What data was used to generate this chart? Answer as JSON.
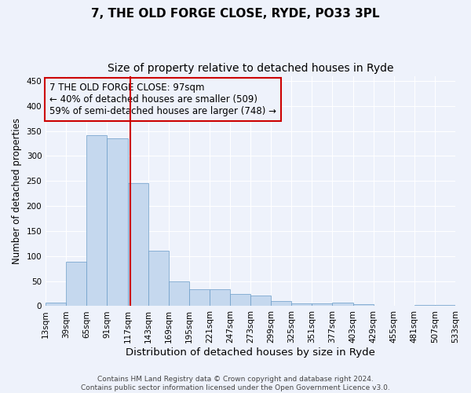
{
  "title": "7, THE OLD FORGE CLOSE, RYDE, PO33 3PL",
  "subtitle": "Size of property relative to detached houses in Ryde",
  "xlabel": "Distribution of detached houses by size in Ryde",
  "ylabel": "Number of detached properties",
  "footer_line1": "Contains HM Land Registry data © Crown copyright and database right 2024.",
  "footer_line2": "Contains public sector information licensed under the Open Government Licence v3.0.",
  "bar_values": [
    7,
    88,
    342,
    335,
    245,
    110,
    49,
    33,
    33,
    25,
    21,
    10,
    5,
    6,
    7,
    4,
    1,
    0,
    3,
    3
  ],
  "bar_labels": [
    "13sqm",
    "39sqm",
    "65sqm",
    "91sqm",
    "117sqm",
    "143sqm",
    "169sqm",
    "195sqm",
    "221sqm",
    "247sqm",
    "273sqm",
    "299sqm",
    "325sqm",
    "351sqm",
    "377sqm",
    "403sqm",
    "429sqm",
    "455sqm",
    "481sqm",
    "507sqm",
    "533sqm"
  ],
  "bar_color": "#c5d8ee",
  "bar_edgecolor": "#6a9cc8",
  "vline_x": 3.62,
  "vline_color": "#cc0000",
  "annotation_text": "7 THE OLD FORGE CLOSE: 97sqm\n← 40% of detached houses are smaller (509)\n59% of semi-detached houses are larger (748) →",
  "annotation_box_color": "#cc0000",
  "annotation_fontsize": 8.5,
  "ylim": [
    0,
    460
  ],
  "yticks": [
    0,
    50,
    100,
    150,
    200,
    250,
    300,
    350,
    400,
    450
  ],
  "background_color": "#eef2fb",
  "grid_color": "#ffffff",
  "title_fontsize": 11,
  "subtitle_fontsize": 10,
  "ylabel_fontsize": 8.5,
  "xlabel_fontsize": 9.5,
  "tick_fontsize": 7.5,
  "footer_fontsize": 6.5
}
